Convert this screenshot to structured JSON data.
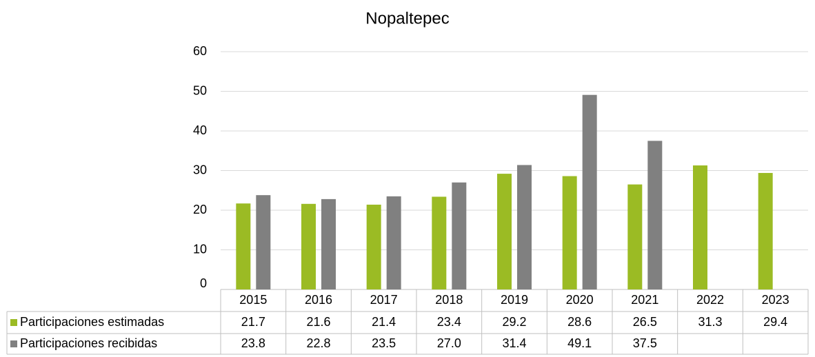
{
  "chart_data": {
    "type": "bar",
    "title": "Nopaltepec",
    "categories": [
      "2015",
      "2016",
      "2017",
      "2018",
      "2019",
      "2020",
      "2021",
      "2022",
      "2023"
    ],
    "series": [
      {
        "name": "Participaciones estimadas",
        "color": "#9bbb24",
        "values": [
          21.7,
          21.6,
          21.4,
          23.4,
          29.2,
          28.6,
          26.5,
          31.3,
          29.4
        ],
        "value_labels": [
          "21.7",
          "21.6",
          "21.4",
          "23.4",
          "29.2",
          "28.6",
          "26.5",
          "31.3",
          "29.4"
        ]
      },
      {
        "name": "Participaciones recibidas",
        "color": "#808080",
        "values": [
          23.8,
          22.8,
          23.5,
          27.0,
          31.4,
          49.1,
          37.5,
          null,
          null
        ],
        "value_labels": [
          "23.8",
          "22.8",
          "23.5",
          "27.0",
          "31.4",
          "49.1",
          "37.5",
          null,
          null
        ]
      }
    ],
    "ylim": [
      0,
      60
    ],
    "yticks": [
      0,
      10,
      20,
      30,
      40,
      50,
      60
    ],
    "grid": true
  }
}
